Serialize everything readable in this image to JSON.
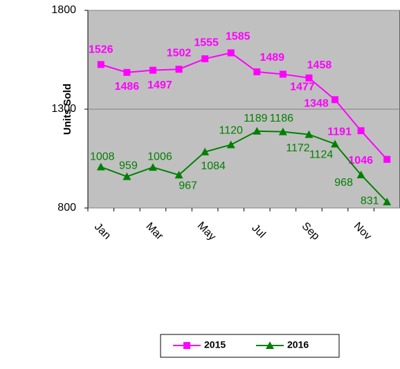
{
  "chart_data": {
    "type": "line",
    "y_axis_label": "Units Sold",
    "categories": [
      "Jan",
      null,
      "Mar",
      null,
      "May",
      null,
      "Jul",
      null,
      "Sep",
      null,
      "Nov",
      null
    ],
    "series": [
      {
        "name": "2015",
        "color": "#ff00ff",
        "marker": "square",
        "values": [
          1526,
          1486,
          1497,
          1502,
          1555,
          1585,
          1489,
          1477,
          1458,
          1348,
          1191,
          1046
        ]
      },
      {
        "name": "2016",
        "color": "#008000",
        "marker": "triangle",
        "values": [
          1008,
          959,
          1006,
          967,
          1084,
          1120,
          1189,
          1186,
          1172,
          1124,
          968,
          831
        ]
      }
    ],
    "ylim": [
      800,
      1800
    ],
    "yticks": [
      800,
      1300,
      1800
    ],
    "grid": true,
    "legend": "bottom"
  }
}
